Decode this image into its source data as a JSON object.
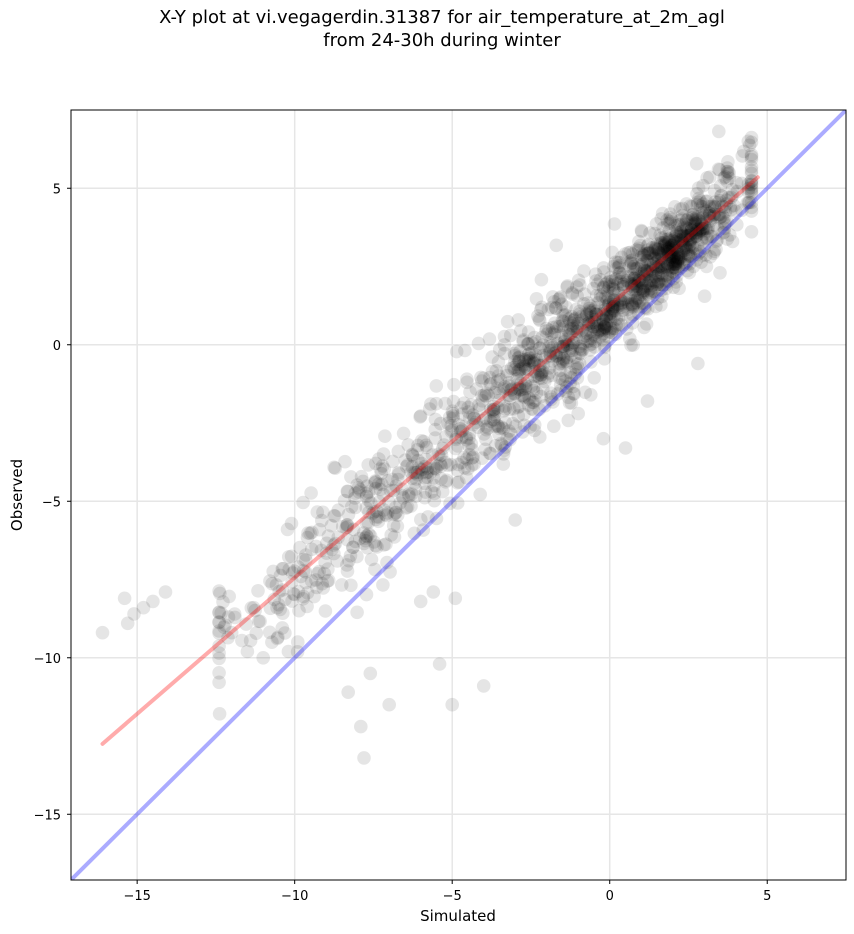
{
  "chart_data": {
    "type": "scatter",
    "title_line1": "X-Y plot at vi.vegagerdin.31387 for air_temperature_at_2m_agl",
    "title_line2": "from 24-30h during winter",
    "xlabel": "Simulated",
    "ylabel": "Observed",
    "xlim": [
      -17.1,
      7.5
    ],
    "ylim": [
      -17.1,
      7.5
    ],
    "xticks": [
      -15,
      -10,
      -5,
      0,
      5
    ],
    "yticks": [
      -15,
      -10,
      -5,
      0,
      5
    ],
    "xtick_labels": [
      "−15",
      "−10",
      "−5",
      "0",
      "5"
    ],
    "ytick_labels": [
      "−15",
      "−10",
      "−5",
      "0",
      "5"
    ],
    "grid": true,
    "point_color": "#000000",
    "point_alpha": 0.1,
    "fit_line": {
      "color": "#ff0000",
      "x": [
        -16.1,
        4.7
      ],
      "y": [
        -12.75,
        5.35
      ]
    },
    "identity_line": {
      "color": "#0000ff",
      "x": [
        -17.1,
        7.5
      ],
      "y": [
        -17.1,
        7.5
      ]
    },
    "outliers": [
      [
        -16.1,
        -9.2
      ],
      [
        -15.3,
        -8.9
      ],
      [
        -15.1,
        -8.6
      ],
      [
        -14.8,
        -8.4
      ],
      [
        -14.5,
        -8.2
      ],
      [
        -14.1,
        -7.9
      ],
      [
        -15.4,
        -8.1
      ],
      [
        -12.0,
        -9.2
      ],
      [
        -11.5,
        -9.8
      ],
      [
        -11.0,
        -10.0
      ],
      [
        -7.9,
        -12.2
      ],
      [
        -7.6,
        -10.5
      ],
      [
        -7.0,
        -11.5
      ],
      [
        -7.8,
        -13.2
      ],
      [
        -8.3,
        -11.1
      ],
      [
        -5.0,
        -11.5
      ],
      [
        -4.0,
        -10.9
      ],
      [
        -5.4,
        -10.2
      ],
      [
        -4.9,
        -8.1
      ],
      [
        -5.6,
        -7.9
      ],
      [
        2.8,
        -0.6
      ],
      [
        0.5,
        -3.3
      ],
      [
        -0.2,
        -3.0
      ],
      [
        3.5,
        2.3
      ],
      [
        3.9,
        3.3
      ],
      [
        4.4,
        6.5
      ],
      [
        4.2,
        4.3
      ],
      [
        1.2,
        -1.8
      ],
      [
        -1.0,
        -2.2
      ],
      [
        -0.6,
        -1.6
      ],
      [
        -12.1,
        -8.7
      ],
      [
        -11.3,
        -8.4
      ],
      [
        -10.2,
        -9.8
      ],
      [
        -9.9,
        -9.5
      ],
      [
        -6.0,
        -8.2
      ],
      [
        -3.0,
        -5.6
      ]
    ]
  }
}
